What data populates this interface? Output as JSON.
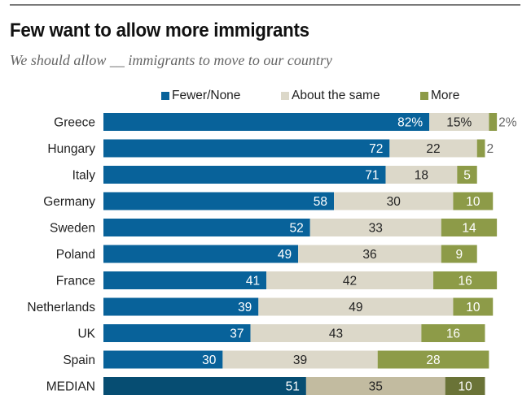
{
  "title": "Few want to allow more immigrants",
  "subtitle": "We should allow __ immigrants to move to our country",
  "colors": {
    "fewer": "#08629a",
    "same": "#dcd8c9",
    "more": "#8d9b48",
    "fewer_median": "#064d72",
    "same_median": "#c2bba0",
    "more_median": "#6a7337",
    "label_on_dark": "#ffffff",
    "label_on_light": "#222222",
    "label_outside": "#666666"
  },
  "legend": [
    {
      "key": "fewer",
      "label": "Fewer/None"
    },
    {
      "key": "same",
      "label": "About the same"
    },
    {
      "key": "more",
      "label": "More"
    }
  ],
  "chart_data": {
    "type": "bar",
    "orientation": "horizontal",
    "stacked": true,
    "title": "Few want to allow more immigrants",
    "subtitle": "We should allow __ immigrants to move to our country",
    "xlabel": "",
    "ylabel": "",
    "xlim": [
      0,
      100
    ],
    "grid": false,
    "legend_position": "top",
    "categories": [
      "Greece",
      "Hungary",
      "Italy",
      "Germany",
      "Sweden",
      "Poland",
      "France",
      "Netherlands",
      "UK",
      "Spain",
      "MEDIAN"
    ],
    "series": [
      {
        "name": "Fewer/None",
        "values": [
          82,
          72,
          71,
          58,
          52,
          49,
          41,
          39,
          37,
          30,
          51
        ]
      },
      {
        "name": "About the same",
        "values": [
          15,
          22,
          18,
          30,
          33,
          36,
          42,
          49,
          43,
          39,
          35
        ]
      },
      {
        "name": "More",
        "values": [
          2,
          2,
          5,
          10,
          14,
          9,
          16,
          10,
          16,
          28,
          10
        ]
      }
    ],
    "value_labels": [
      [
        "82%",
        "15%",
        "2%"
      ],
      [
        "72",
        "22",
        "2"
      ],
      [
        "71",
        "18",
        "5"
      ],
      [
        "58",
        "30",
        "10"
      ],
      [
        "52",
        "33",
        "14"
      ],
      [
        "49",
        "36",
        "9"
      ],
      [
        "41",
        "42",
        "16"
      ],
      [
        "39",
        "49",
        "10"
      ],
      [
        "37",
        "43",
        "16"
      ],
      [
        "30",
        "39",
        "28"
      ],
      [
        "51",
        "35",
        "10"
      ]
    ],
    "highlight_category": "MEDIAN"
  }
}
